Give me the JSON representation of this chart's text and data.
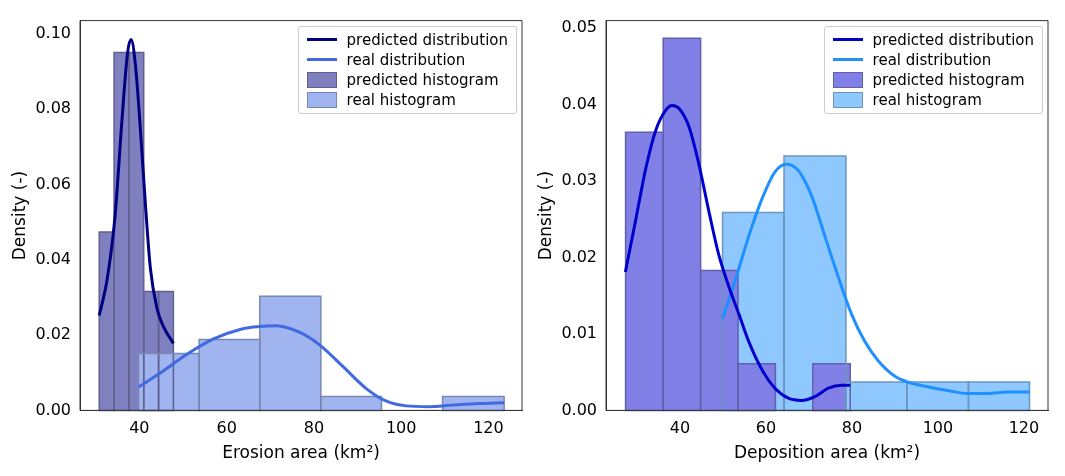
{
  "chart_data": [
    {
      "type": "histogram",
      "xlabel": "Erosion area (km²)",
      "ylabel": "Density (-)",
      "xlim": [
        26.4,
        127.7
      ],
      "ylim": [
        0,
        0.1035
      ],
      "xticks": [
        40,
        60,
        80,
        100,
        120
      ],
      "yticks": [
        {
          "value": 0,
          "label": "0.00"
        },
        {
          "value": 0.02,
          "label": "0.02"
        },
        {
          "value": 0.04,
          "label": "0.04"
        },
        {
          "value": 0.06,
          "label": "0.06"
        },
        {
          "value": 0.08,
          "label": "0.08"
        },
        {
          "value": 0.1,
          "label": "0.10"
        }
      ],
      "grid": false,
      "legend": "top right",
      "series": [
        {
          "name": "predicted distribution",
          "type": "line",
          "color": "#000080",
          "x": [
            30.8,
            32.6,
            34.4,
            36.0,
            37.3,
            38.1,
            39.1,
            40.2,
            41.4,
            42.5,
            44.0,
            45.5,
            47.8
          ],
          "values": [
            0.0252,
            0.0347,
            0.0512,
            0.0769,
            0.095,
            0.0985,
            0.0917,
            0.0752,
            0.0545,
            0.038,
            0.0273,
            0.0223,
            0.0178
          ]
        },
        {
          "name": "real distribution",
          "type": "line",
          "color": "#4169e1",
          "x": [
            39.8,
            44.8,
            50.9,
            57.0,
            63.1,
            67.6,
            71.4,
            76.8,
            81.3,
            86.7,
            92.0,
            96.5,
            101.1,
            106.4,
            111.8,
            117.9,
            123.6
          ],
          "values": [
            0.0062,
            0.0099,
            0.0149,
            0.019,
            0.0215,
            0.0223,
            0.0225,
            0.0207,
            0.0174,
            0.0116,
            0.0058,
            0.0025,
            0.0012,
            0.001,
            0.0014,
            0.0018,
            0.002
          ]
        },
        {
          "name": "predicted histogram",
          "type": "histogram",
          "color": "#8080c0",
          "bins": [
            30.8,
            34.2,
            37.6,
            41.0,
            44.4,
            47.8
          ],
          "values": [
            0.0474,
            0.095,
            0.095,
            0.0316,
            0.0316
          ]
        },
        {
          "name": "real histogram",
          "type": "histogram",
          "color": "#a0b4f0",
          "bins": [
            39.8,
            53.7,
            67.6,
            81.6,
            95.5,
            109.5,
            123.6
          ],
          "values": [
            0.0151,
            0.0188,
            0.0303,
            0.0037,
            0,
            0.0037
          ]
        }
      ]
    },
    {
      "type": "histogram",
      "xlabel": "Deposition area (km²)",
      "ylabel": "Density (-)",
      "xlim": [
        22.8,
        125.6
      ],
      "ylim": [
        0,
        0.051
      ],
      "xticks": [
        40,
        60,
        80,
        100,
        120
      ],
      "yticks": [
        {
          "value": 0,
          "label": "0.00"
        },
        {
          "value": 0.01,
          "label": "0.01"
        },
        {
          "value": 0.02,
          "label": "0.02"
        },
        {
          "value": 0.03,
          "label": "0.03"
        },
        {
          "value": 0.04,
          "label": "0.04"
        },
        {
          "value": 0.05,
          "label": "0.05"
        }
      ],
      "grid": false,
      "legend": "top right",
      "series": [
        {
          "name": "predicted distribution",
          "type": "line",
          "color": "#0000cd",
          "x": [
            27.3,
            29.7,
            32.1,
            34.4,
            36.7,
            38.2,
            39.8,
            42.1,
            44.4,
            46.7,
            49.0,
            51.3,
            53.7,
            56.0,
            59.1,
            62.1,
            65.2,
            68.3,
            71.4,
            74.5,
            77.6,
            79.6
          ],
          "values": [
            0.0181,
            0.0249,
            0.0318,
            0.0367,
            0.0393,
            0.0399,
            0.0395,
            0.0371,
            0.0322,
            0.0261,
            0.0204,
            0.0163,
            0.0126,
            0.009,
            0.0053,
            0.0029,
            0.0016,
            0.0013,
            0.0018,
            0.0029,
            0.0033,
            0.0033
          ]
        },
        {
          "name": "real distribution",
          "type": "line",
          "color": "#1e90ff",
          "x": [
            49.9,
            52.9,
            56.0,
            59.1,
            62.1,
            64.8,
            67.5,
            70.6,
            73.7,
            76.8,
            79.9,
            83.0,
            86.1,
            89.9,
            93.0,
            97.6,
            102.3,
            106.9,
            111.5,
            116.2,
            121.3
          ],
          "values": [
            0.012,
            0.0171,
            0.0228,
            0.0277,
            0.0312,
            0.0322,
            0.0314,
            0.0281,
            0.0228,
            0.0175,
            0.0126,
            0.009,
            0.0065,
            0.0045,
            0.0037,
            0.0031,
            0.0026,
            0.0022,
            0.0022,
            0.0024,
            0.0024
          ]
        },
        {
          "name": "predicted histogram",
          "type": "histogram",
          "color": "#8080e6",
          "bins": [
            27.35,
            36.1,
            44.8,
            53.5,
            62.2,
            70.9,
            79.6
          ],
          "values": [
            0.0364,
            0.0487,
            0.0183,
            0.0061,
            0,
            0.0061
          ]
        },
        {
          "name": "real histogram",
          "type": "histogram",
          "color": "#8fc8ff",
          "bins": [
            49.9,
            64.2,
            78.6,
            92.8,
            107.1,
            121.3
          ],
          "values": [
            0.0259,
            0.0333,
            0.0037,
            0.0037,
            0.0037
          ]
        }
      ]
    }
  ]
}
